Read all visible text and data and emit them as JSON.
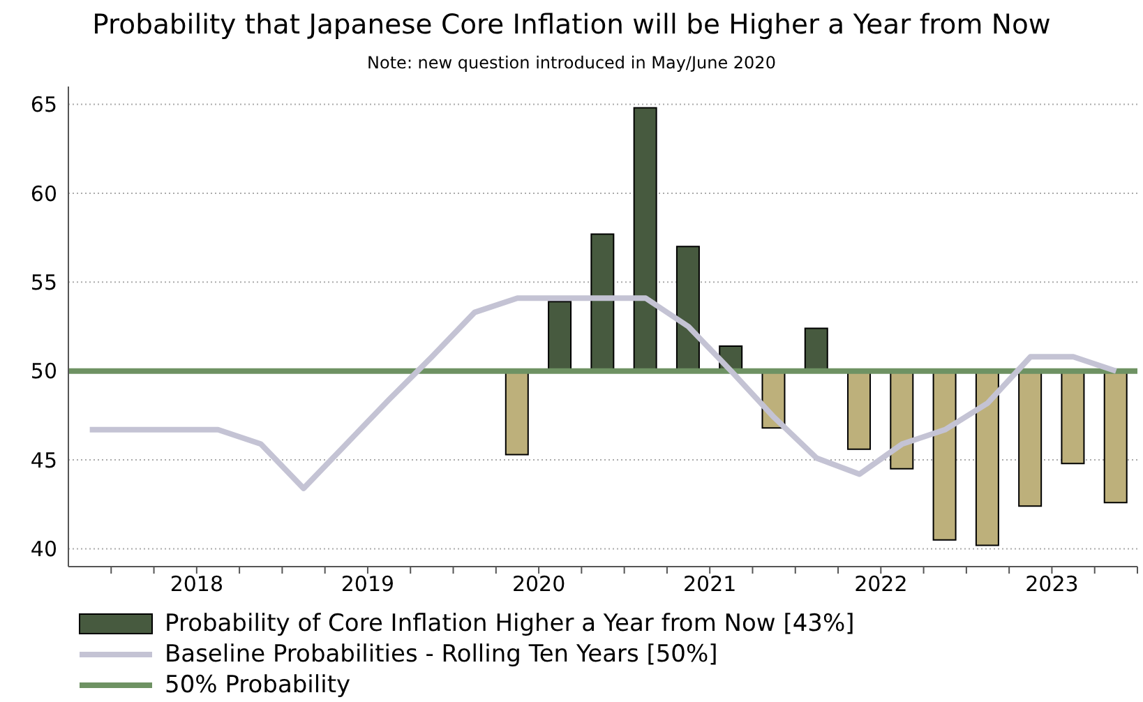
{
  "chart_data": {
    "type": "bar",
    "title": "Probability that Japanese Core Inflation will be Higher a Year from Now",
    "subtitle": "Note: new question introduced in May/June 2020",
    "xlim": [
      2017.75,
      2024
    ],
    "xticks": [
      {
        "value": 2018,
        "label": null
      },
      {
        "value": 2018.25,
        "label": null
      },
      {
        "value": 2018.5,
        "label": "2018"
      },
      {
        "value": 2018.75,
        "label": null
      },
      {
        "value": 2019,
        "label": null
      },
      {
        "value": 2019.25,
        "label": null
      },
      {
        "value": 2019.5,
        "label": "2019"
      },
      {
        "value": 2019.75,
        "label": null
      },
      {
        "value": 2020,
        "label": null
      },
      {
        "value": 2020.25,
        "label": null
      },
      {
        "value": 2020.5,
        "label": "2020"
      },
      {
        "value": 2020.75,
        "label": null
      },
      {
        "value": 2021,
        "label": null
      },
      {
        "value": 2021.25,
        "label": null
      },
      {
        "value": 2021.5,
        "label": "2021"
      },
      {
        "value": 2021.75,
        "label": null
      },
      {
        "value": 2022,
        "label": null
      },
      {
        "value": 2022.25,
        "label": null
      },
      {
        "value": 2022.5,
        "label": "2022"
      },
      {
        "value": 2022.75,
        "label": null
      },
      {
        "value": 2023,
        "label": null
      },
      {
        "value": 2023.25,
        "label": null
      },
      {
        "value": 2023.5,
        "label": "2023"
      },
      {
        "value": 2023.75,
        "label": null
      },
      {
        "value": 2024,
        "label": null
      }
    ],
    "ylim": [
      39,
      66
    ],
    "yticks": [
      40,
      45,
      50,
      55,
      60,
      65
    ],
    "grid": "y",
    "legend": "bottom",
    "series": [
      {
        "name": "Probability of Core Inflation Higher a Year from Now [43%]",
        "color": "#475a3f",
        "x": [
          2020.375,
          2020.625,
          2020.875,
          2021.125,
          2021.375,
          2021.625,
          2021.875,
          2022.125,
          2022.375,
          2022.625,
          2022.875,
          2023.125,
          2023.375,
          2023.625,
          2023.875
        ],
        "base": [
          50,
          50,
          50,
          50,
          50,
          50,
          50,
          50,
          50,
          50,
          50,
          50,
          50,
          50,
          50
        ],
        "values": [
          -4.7,
          3.9,
          7.7,
          14.8,
          7.0,
          1.4,
          -3.2,
          2.4,
          -4.4,
          -5.5,
          -9.5,
          -9.8,
          -7.6,
          -5.2,
          -7.4
        ],
        "colors": [
          "#bdb07b",
          "#475a3f",
          "#475a3f",
          "#475a3f",
          "#475a3f",
          "#475a3f",
          "#bdb07b",
          "#475a3f",
          "#bdb07b",
          "#bdb07b",
          "#bdb07b",
          "#bdb07b",
          "#bdb07b",
          "#bdb07b",
          "#bdb07b"
        ]
      },
      {
        "name": "Baseline Probabilities - Rolling Ten Years [50%]",
        "type": "line",
        "color": "#c4c3d4",
        "x": [
          2017.875,
          2018.125,
          2018.375,
          2018.625,
          2018.875,
          2019.125,
          2019.375,
          2019.625,
          2019.875,
          2020.125,
          2020.375,
          2020.625,
          2020.875,
          2021.125,
          2021.375,
          2021.625,
          2021.875,
          2022.125,
          2022.375,
          2022.625,
          2022.875,
          2023.125,
          2023.375,
          2023.625,
          2023.875
        ],
        "values": [
          46.7,
          46.7,
          46.7,
          46.7,
          45.9,
          43.4,
          45.9,
          48.4,
          50.8,
          53.3,
          54.1,
          54.1,
          54.1,
          54.1,
          52.5,
          50.0,
          47.4,
          45.1,
          44.2,
          45.9,
          46.7,
          48.2,
          50.8,
          50.8,
          50.0
        ]
      }
    ],
    "ref_lines": [
      {
        "axis": "y",
        "value": 50,
        "label": "50% Probability",
        "color": "#6e9263"
      }
    ]
  }
}
